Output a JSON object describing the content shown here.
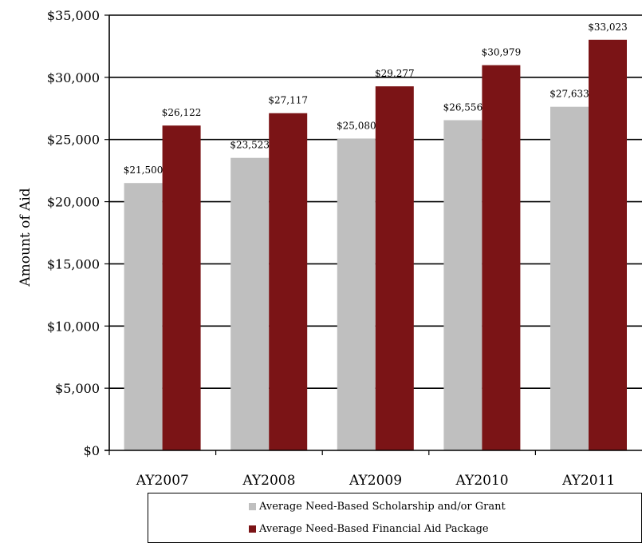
{
  "chart_data": {
    "type": "bar",
    "categories": [
      "AY2007",
      "AY2008",
      "AY2009",
      "AY2010",
      "AY2011"
    ],
    "series": [
      {
        "name": "Average Need-Based Scholarship and/or Grant",
        "color": "#bfbfbf",
        "values": [
          21500,
          23523,
          25080,
          26556,
          27633
        ],
        "labels": [
          "$21,500",
          "$23,523",
          "$25,080",
          "$26,556",
          "$27,633"
        ]
      },
      {
        "name": "Average Need-Based Financial Aid Package",
        "color": "#7b1416",
        "values": [
          26122,
          27117,
          29277,
          30979,
          33023
        ],
        "labels": [
          "$26,122",
          "$27,117",
          "$29,277",
          "$30,979",
          "$33,023"
        ]
      }
    ],
    "ylabel": "Amount of Aid",
    "xlabel": "",
    "ylim": [
      0,
      35000
    ],
    "yticks": [
      0,
      5000,
      10000,
      15000,
      20000,
      25000,
      30000,
      35000
    ],
    "ytick_labels": [
      "$0",
      "$5,000",
      "$10,000",
      "$15,000",
      "$20,000",
      "$25,000",
      "$30,000",
      "$35,000"
    ],
    "grid": true,
    "legend_position": "bottom"
  }
}
